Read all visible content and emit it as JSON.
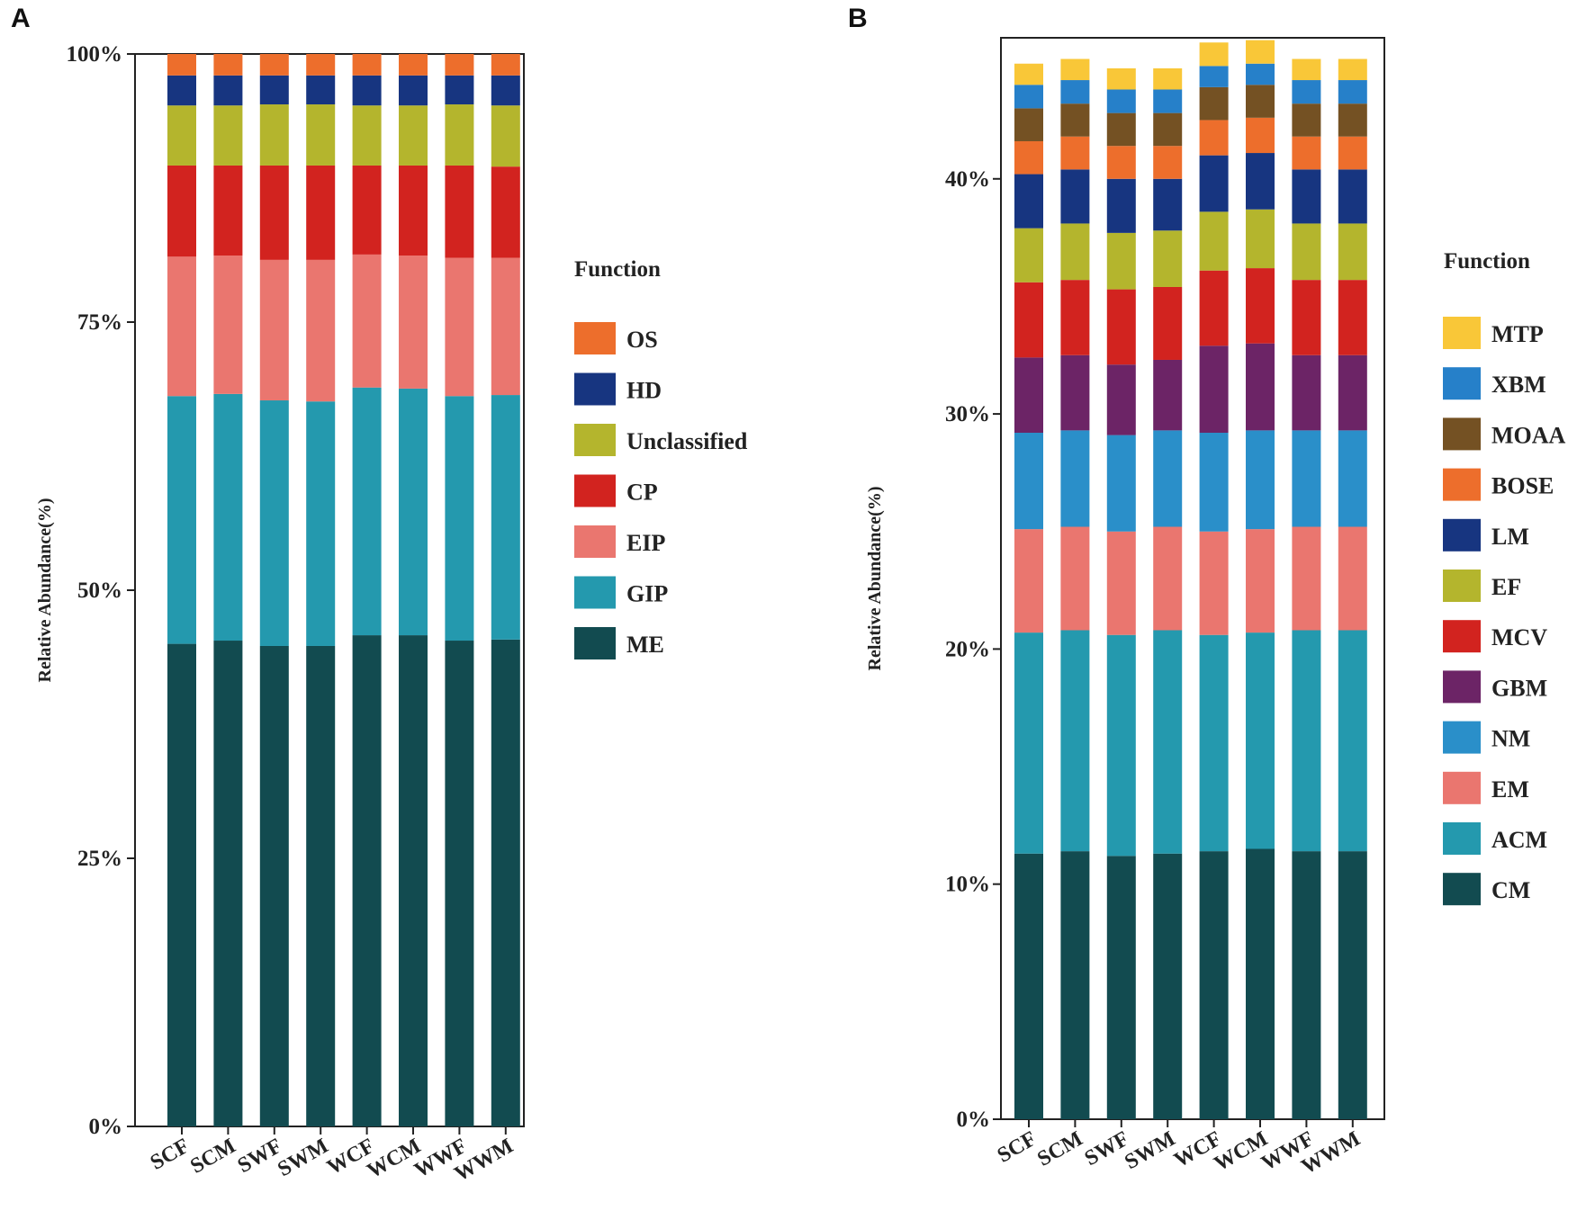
{
  "chart_data": [
    {
      "panel": "A",
      "type": "bar",
      "stacked": true,
      "ylabel": "Relative Abundance(%)",
      "ylim": [
        0,
        100
      ],
      "yticks": [
        "0%",
        "25%",
        "50%",
        "75%",
        "100%"
      ],
      "categories": [
        "SCF",
        "SCM",
        "SWF",
        "SWM",
        "WCF",
        "WCM",
        "WWF",
        "WWM"
      ],
      "legend_title": "Function",
      "legend_order": [
        "OS",
        "HD",
        "Unclassified",
        "CP",
        "EIP",
        "GIP",
        "ME"
      ],
      "series": [
        {
          "name": "ME",
          "color": "#124b50",
          "values": [
            45.0,
            45.3,
            44.8,
            44.8,
            45.8,
            45.8,
            45.3,
            45.4
          ]
        },
        {
          "name": "GIP",
          "color": "#2499ae",
          "values": [
            23.1,
            23.0,
            22.9,
            22.8,
            23.1,
            23.0,
            22.8,
            22.8
          ]
        },
        {
          "name": "EIP",
          "color": "#ea766f",
          "values": [
            13.0,
            12.9,
            13.1,
            13.2,
            12.4,
            12.4,
            12.9,
            12.8
          ]
        },
        {
          "name": "CP",
          "color": "#d2231f",
          "values": [
            8.5,
            8.4,
            8.8,
            8.8,
            8.3,
            8.4,
            8.6,
            8.5
          ]
        },
        {
          "name": "Unclassified",
          "color": "#b4b52d",
          "values": [
            5.6,
            5.6,
            5.7,
            5.7,
            5.6,
            5.6,
            5.7,
            5.7
          ]
        },
        {
          "name": "HD",
          "color": "#173580",
          "values": [
            2.8,
            2.8,
            2.7,
            2.7,
            2.8,
            2.8,
            2.7,
            2.8
          ]
        },
        {
          "name": "OS",
          "color": "#ed6e2c",
          "values": [
            2.0,
            2.0,
            2.0,
            2.0,
            2.0,
            2.0,
            2.0,
            2.0
          ]
        }
      ]
    },
    {
      "panel": "B",
      "type": "bar",
      "stacked": true,
      "ylabel": "Relative Abundance(%)",
      "ylim": [
        0,
        46
      ],
      "yticks": [
        "0%",
        "10%",
        "20%",
        "30%",
        "40%"
      ],
      "categories": [
        "SCF",
        "SCM",
        "SWF",
        "SWM",
        "WCF",
        "WCM",
        "WWF",
        "WWM"
      ],
      "legend_title": "Function",
      "legend_order": [
        "MTP",
        "XBM",
        "MOAA",
        "BOSE",
        "LM",
        "EF",
        "MCV",
        "GBM",
        "NM",
        "EM",
        "ACM",
        "CM"
      ],
      "series": [
        {
          "name": "CM",
          "color": "#124b50",
          "values": [
            11.3,
            11.4,
            11.2,
            11.3,
            11.4,
            11.5,
            11.4,
            11.4
          ]
        },
        {
          "name": "ACM",
          "color": "#2499ae",
          "values": [
            9.4,
            9.4,
            9.4,
            9.5,
            9.2,
            9.2,
            9.4,
            9.4
          ]
        },
        {
          "name": "EM",
          "color": "#ea766f",
          "values": [
            4.4,
            4.4,
            4.4,
            4.4,
            4.4,
            4.4,
            4.4,
            4.4
          ]
        },
        {
          "name": "NM",
          "color": "#2a8fc9",
          "values": [
            4.1,
            4.1,
            4.1,
            4.1,
            4.2,
            4.2,
            4.1,
            4.1
          ]
        },
        {
          "name": "GBM",
          "color": "#6c2466",
          "values": [
            3.2,
            3.2,
            3.0,
            3.0,
            3.7,
            3.7,
            3.2,
            3.2
          ]
        },
        {
          "name": "MCV",
          "color": "#d2231f",
          "values": [
            3.2,
            3.2,
            3.2,
            3.1,
            3.2,
            3.2,
            3.2,
            3.2
          ]
        },
        {
          "name": "EF",
          "color": "#b4b52d",
          "values": [
            2.3,
            2.4,
            2.4,
            2.4,
            2.5,
            2.5,
            2.4,
            2.4
          ]
        },
        {
          "name": "LM",
          "color": "#173580",
          "values": [
            2.3,
            2.3,
            2.3,
            2.2,
            2.4,
            2.4,
            2.3,
            2.3
          ]
        },
        {
          "name": "BOSE",
          "color": "#ed6e2c",
          "values": [
            1.4,
            1.4,
            1.4,
            1.4,
            1.5,
            1.5,
            1.4,
            1.4
          ]
        },
        {
          "name": "MOAA",
          "color": "#745123",
          "values": [
            1.4,
            1.4,
            1.4,
            1.4,
            1.4,
            1.4,
            1.4,
            1.4
          ]
        },
        {
          "name": "XBM",
          "color": "#2680c9",
          "values": [
            1.0,
            1.0,
            1.0,
            1.0,
            0.9,
            0.9,
            1.0,
            1.0
          ]
        },
        {
          "name": "MTP",
          "color": "#f9c738",
          "values": [
            0.9,
            0.9,
            0.9,
            0.9,
            1.0,
            1.0,
            0.9,
            0.9
          ]
        }
      ]
    }
  ],
  "panels": {
    "a": {
      "label": "A"
    },
    "b": {
      "label": "B"
    }
  }
}
